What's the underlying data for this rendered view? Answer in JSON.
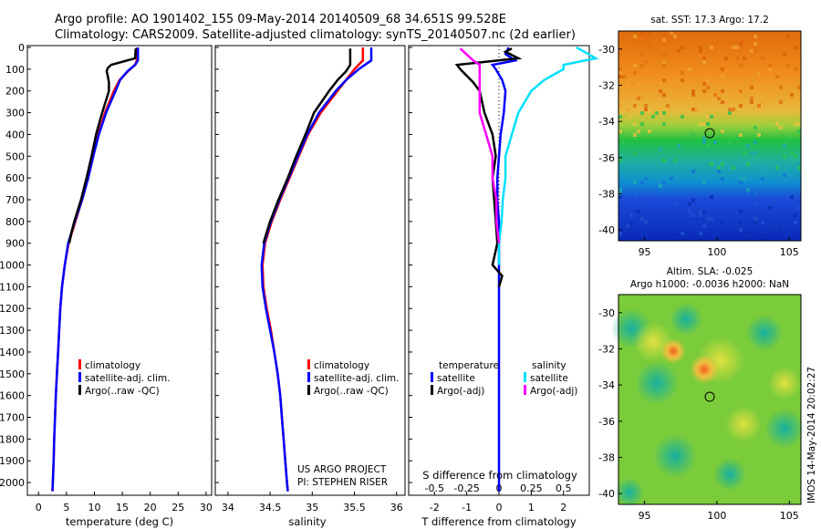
{
  "header": {
    "line1": "Argo profile: AO 1901402_155 09-May-2014 20140509_68 34.651S 99.528E",
    "line2": "Climatology: CARS2009. Satellite-adjusted climatology: synTS_20140507.nc (2d earlier)"
  },
  "colors": {
    "climatology": "#ff0000",
    "satellite": "#0000ff",
    "argo": "#000000",
    "sal_satellite": "#00e0ff",
    "sal_argo": "#ff00ff"
  },
  "depth_axis": {
    "ticks": [
      "0",
      "100",
      "200",
      "300",
      "400",
      "500",
      "600",
      "700",
      "800",
      "900",
      "1000",
      "1100",
      "1200",
      "1300",
      "1400",
      "1500",
      "1600",
      "1700",
      "1800",
      "1900",
      "2000"
    ]
  },
  "chart_data": [
    {
      "type": "line",
      "name": "temperature-profile",
      "xlabel": "temperature (deg C)",
      "xlim": [
        -2,
        31
      ],
      "ylim": [
        2050,
        0
      ],
      "x_ticks": [
        "0",
        "5",
        "10",
        "15",
        "20",
        "25",
        "30"
      ],
      "legend": [
        "climatology",
        "satellite-adj. clim.",
        "Argo(..raw -QC)"
      ],
      "series": [
        {
          "name": "climatology",
          "depth": [
            0,
            60,
            80,
            110,
            150,
            200,
            300,
            400,
            500,
            600,
            700,
            800,
            900,
            1000,
            1100,
            1200,
            1300,
            1400,
            1500,
            1600,
            1700,
            1800,
            1900,
            2000,
            2040
          ],
          "values": [
            17.6,
            17.6,
            17.3,
            16.0,
            14.5,
            13.5,
            11.9,
            10.7,
            9.8,
            8.9,
            7.8,
            6.6,
            5.4,
            4.7,
            4.2,
            3.9,
            3.7,
            3.5,
            3.3,
            3.1,
            2.95,
            2.8,
            2.7,
            2.55,
            2.5
          ]
        },
        {
          "name": "satellite-adj. clim.",
          "depth": [
            0,
            60,
            80,
            110,
            150,
            200,
            300,
            400,
            500,
            600,
            700,
            800,
            900,
            1000,
            1100,
            1200,
            1300,
            1400,
            1500,
            1600,
            1700,
            1800,
            1900,
            2000,
            2040
          ],
          "values": [
            17.8,
            17.8,
            17.3,
            15.9,
            14.6,
            13.8,
            12.1,
            10.8,
            9.8,
            8.9,
            7.8,
            6.5,
            5.3,
            4.7,
            4.2,
            3.9,
            3.7,
            3.5,
            3.3,
            3.1,
            2.95,
            2.8,
            2.7,
            2.55,
            2.5
          ]
        },
        {
          "name": "Argo(..raw -QC)",
          "depth": [
            5,
            50,
            80,
            95,
            110,
            130,
            160,
            200,
            300,
            400,
            500,
            600,
            700,
            800,
            850,
            900
          ],
          "values": [
            17.4,
            17.3,
            13.0,
            12.4,
            12.2,
            12.4,
            12.6,
            12.6,
            11.4,
            10.3,
            9.5,
            8.6,
            7.6,
            6.4,
            5.9,
            5.5
          ]
        }
      ]
    },
    {
      "type": "line",
      "name": "salinity-profile",
      "xlabel": "salinity",
      "xlim": [
        33.85,
        36.1
      ],
      "ylim": [
        2050,
        0
      ],
      "x_ticks": [
        "34",
        "34.5",
        "35",
        "35.5",
        "36"
      ],
      "legend": [
        "climatology",
        "satellite-adj. clim.",
        "Argo(..raw -QC)"
      ],
      "annotation": [
        "US ARGO PROJECT",
        "PI: STEPHEN RISER"
      ],
      "series": [
        {
          "name": "climatology",
          "depth": [
            0,
            60,
            100,
            150,
            200,
            300,
            400,
            500,
            600,
            700,
            800,
            900,
            1000,
            1100,
            1200,
            1300,
            1400,
            1500,
            1600,
            1700,
            1800,
            1900,
            2000,
            2040
          ],
          "values": [
            35.6,
            35.6,
            35.5,
            35.4,
            35.3,
            35.1,
            34.95,
            34.84,
            34.73,
            34.62,
            34.52,
            34.44,
            34.41,
            34.42,
            34.46,
            34.51,
            34.55,
            34.59,
            34.62,
            34.64,
            34.66,
            34.68,
            34.7,
            34.71
          ]
        },
        {
          "name": "satellite-adj. clim.",
          "depth": [
            0,
            60,
            100,
            150,
            200,
            300,
            400,
            500,
            600,
            700,
            800,
            900,
            1000,
            1100,
            1200,
            1300,
            1400,
            1500,
            1600,
            1700,
            1800,
            1900,
            2000,
            2040
          ],
          "values": [
            35.7,
            35.7,
            35.55,
            35.4,
            35.28,
            35.08,
            34.94,
            34.83,
            34.72,
            34.61,
            34.51,
            34.43,
            34.4,
            34.41,
            34.45,
            34.5,
            34.55,
            34.59,
            34.62,
            34.64,
            34.66,
            34.68,
            34.7,
            34.71
          ]
        },
        {
          "name": "Argo(..raw -QC)",
          "depth": [
            5,
            60,
            80,
            110,
            150,
            200,
            300,
            400,
            500,
            600,
            700,
            800,
            900
          ],
          "values": [
            35.45,
            35.45,
            35.45,
            35.4,
            35.3,
            35.2,
            35.02,
            34.92,
            34.81,
            34.71,
            34.6,
            34.5,
            34.42
          ]
        }
      ]
    },
    {
      "type": "line",
      "name": "difference-profile",
      "xlabel": "T difference from climatology",
      "x2label": "S difference from climatology",
      "xlim": [
        -2.8,
        2.8
      ],
      "ylim": [
        2050,
        0
      ],
      "x_ticks": [
        "-2",
        "-1",
        "0",
        "1",
        "2"
      ],
      "x2_ticks": [
        "-0.5",
        "-0.25",
        "0",
        "0.25",
        "0.5"
      ],
      "legend_groups": {
        "temperature": "temperature",
        "salinity": "salinity"
      },
      "legend": [
        "satellite",
        "Argo(-adj)",
        "satellite",
        "Argo(-adj)"
      ],
      "series": [
        {
          "name": "temperature satellite",
          "depth": [
            0,
            30,
            60,
            80,
            100,
            150,
            200,
            300,
            400,
            500,
            600,
            700,
            800,
            900,
            1000,
            1100,
            1200,
            1400,
            1600,
            1800,
            2000,
            2040
          ],
          "values": [
            0.3,
            0.2,
            0.5,
            -0.2,
            -0.1,
            0.1,
            0.2,
            0.15,
            0.05,
            0.0,
            -0.05,
            -0.05,
            0.0,
            0.0,
            0.0,
            0.0,
            0.0,
            0.0,
            0.0,
            0.0,
            0.0,
            0.0
          ]
        },
        {
          "name": "temperature Argo(-adj)",
          "depth": [
            5,
            20,
            50,
            80,
            100,
            130,
            160,
            200,
            300,
            400,
            500,
            600,
            700,
            800,
            900,
            1000,
            1050,
            1100
          ],
          "values": [
            0.4,
            0.2,
            0.6,
            -1.3,
            -1.2,
            -1.0,
            -0.8,
            -0.6,
            -0.45,
            -0.2,
            -0.1,
            -0.2,
            -0.15,
            -0.1,
            -0.05,
            -0.2,
            0.1,
            0.0
          ]
        },
        {
          "name": "salinity satellite",
          "depth": [
            0,
            50,
            80,
            100,
            150,
            200,
            300,
            400,
            500,
            600,
            700,
            800,
            900,
            1000
          ],
          "values": [
            0.6,
            0.75,
            0.5,
            0.5,
            0.35,
            0.25,
            0.15,
            0.1,
            0.05,
            0.05,
            0.03,
            0.02,
            0.0,
            0.0
          ]
        },
        {
          "name": "salinity Argo(-adj)",
          "depth": [
            5,
            60,
            80,
            110,
            150,
            200,
            300,
            400,
            500,
            600,
            700,
            800,
            900
          ],
          "values": [
            -0.3,
            -0.2,
            -0.15,
            -0.15,
            -0.15,
            -0.15,
            -0.15,
            -0.1,
            -0.05,
            -0.05,
            -0.02,
            -0.02,
            0.0
          ]
        }
      ]
    },
    {
      "type": "heatmap",
      "name": "sst-map",
      "title": "sat. SST: 17.3 Argo: 17.2",
      "x_ticks": [
        "95",
        "100",
        "105"
      ],
      "y_ticks": [
        "-30",
        "-32",
        "-34",
        "-36",
        "-38",
        "-40"
      ],
      "marker": {
        "lon": 99.5,
        "lat": -34.65
      }
    },
    {
      "type": "heatmap",
      "name": "sla-map",
      "title1": "Altim. SLA: -0.025",
      "title2": "Argo h1000: -0.0036 h2000: NaN",
      "x_ticks": [
        "95",
        "100",
        "105"
      ],
      "y_ticks": [
        "-30",
        "-32",
        "-34",
        "-36",
        "-38",
        "-40"
      ],
      "marker": {
        "lon": 99.5,
        "lat": -34.65
      }
    }
  ],
  "footer_stamp": "IMOS 14-May-2014 20:02:27"
}
